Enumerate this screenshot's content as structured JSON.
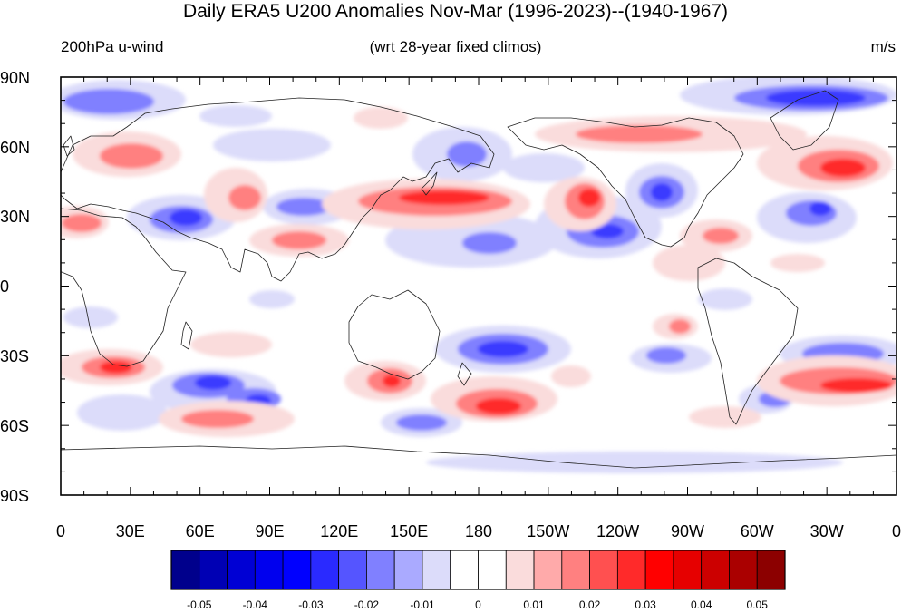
{
  "title": "Daily ERA5 U200 Anomalies Nov-Mar (1996-2023)--(1940-1967)",
  "subtitle_left": "200hPa u-wind",
  "subtitle_center": "(wrt 28-year fixed climos)",
  "subtitle_right": "m/s",
  "y_tick_labels": [
    "90N",
    "60N",
    "30N",
    "0",
    "30S",
    "60S",
    "90S"
  ],
  "x_tick_labels": [
    "0",
    "30E",
    "60E",
    "90E",
    "120E",
    "150E",
    "180",
    "150W",
    "120W",
    "90W",
    "60W",
    "30W",
    "0"
  ],
  "colorbar": {
    "colors": [
      "#00008c",
      "#0000b4",
      "#0000d4",
      "#0000ee",
      "#0000ff",
      "#2a2aff",
      "#5555ff",
      "#8080ff",
      "#aaaaff",
      "#dcdcfa",
      "#ffffff",
      "#ffffff",
      "#fadcdc",
      "#ffaaaa",
      "#ff8080",
      "#ff5050",
      "#ff2a2a",
      "#ff0000",
      "#e60000",
      "#cc0000",
      "#aa0000",
      "#8c0000"
    ],
    "labels": [
      "-0.05",
      "-0.04",
      "-0.03",
      "-0.02",
      "-0.01",
      "0",
      "0.01",
      "0.02",
      "0.03",
      "0.04",
      "0.05"
    ]
  },
  "anomaly_colors": {
    "neg_light": "#dcdcfa",
    "neg_mid": "#8080ff",
    "neg_strong": "#3a3aff",
    "pos_light": "#fadcdc",
    "pos_mid": "#ff8080",
    "pos_strong": "#ff2a2a"
  }
}
